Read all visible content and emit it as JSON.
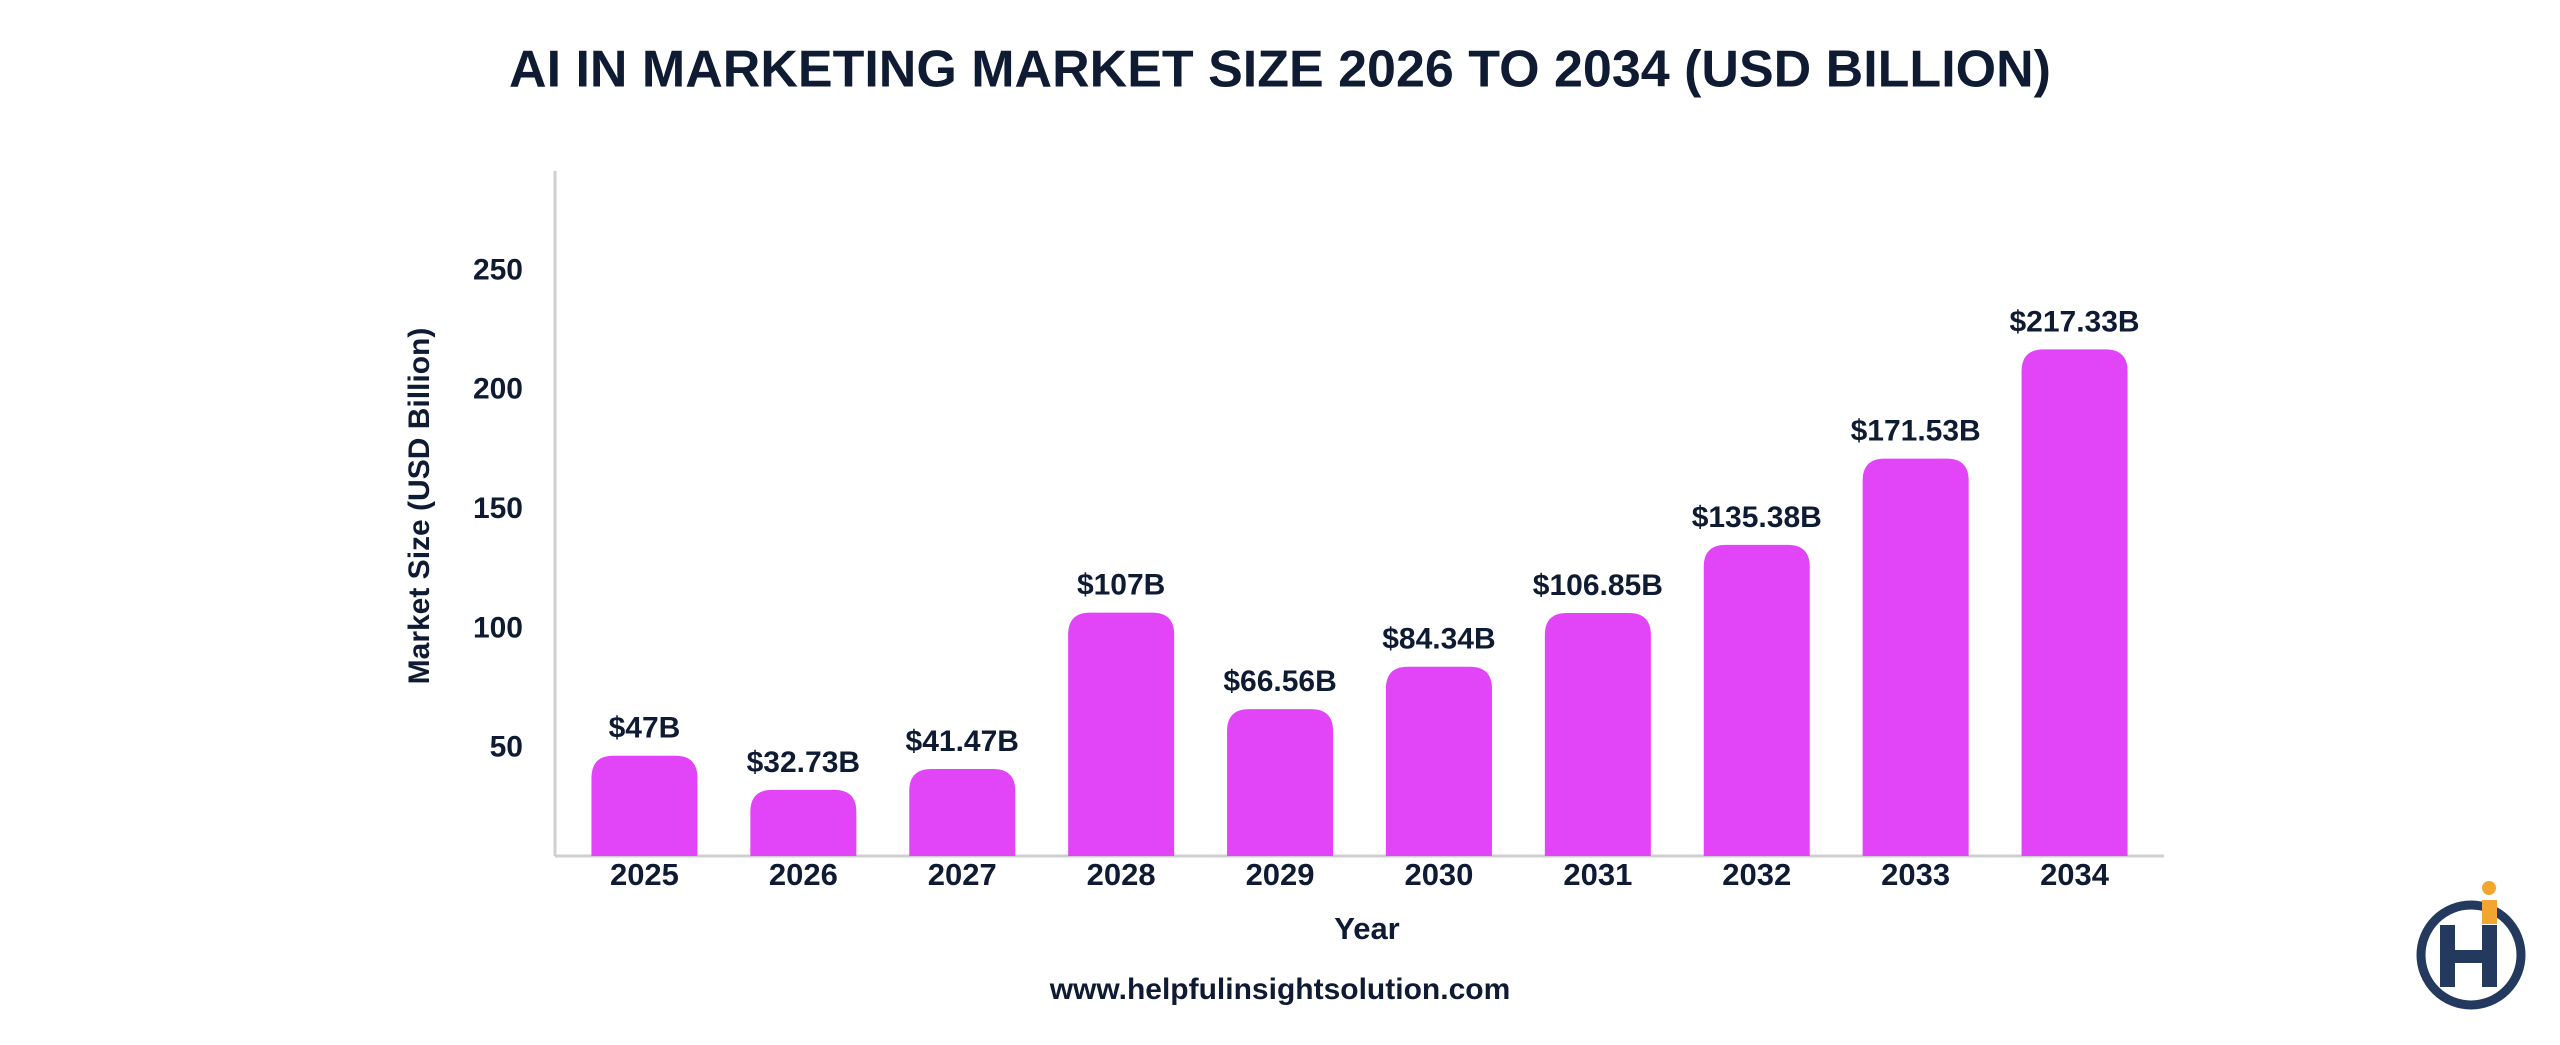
{
  "chart_data": {
    "type": "bar",
    "title": "AI IN MARKETING MARKET SIZE 2026 TO 2034 (USD BILLION)",
    "x_label": "Year",
    "y_label": "Market Size  (USD Billion)",
    "categories": [
      "2025",
      "2026",
      "2027",
      "2028",
      "2029",
      "2030",
      "2031",
      "2032",
      "2033",
      "2034"
    ],
    "values": [
      47,
      32.73,
      41.47,
      107,
      66.56,
      84.34,
      106.85,
      135.38,
      171.53,
      217.33
    ],
    "value_labels": [
      "$47B",
      "$32.73B",
      "$41.47B",
      "$107B",
      "$66.56B",
      "$84.34B",
      "$106.85B",
      "$135.38B",
      "$171.53B",
      "$217.33B"
    ],
    "color": "#e145f7",
    "ylim": [
      5,
      290
    ],
    "yticks": [
      50,
      100,
      150,
      200,
      250
    ],
    "grid": false,
    "source": "www.helpfulinsightsolution.com"
  }
}
